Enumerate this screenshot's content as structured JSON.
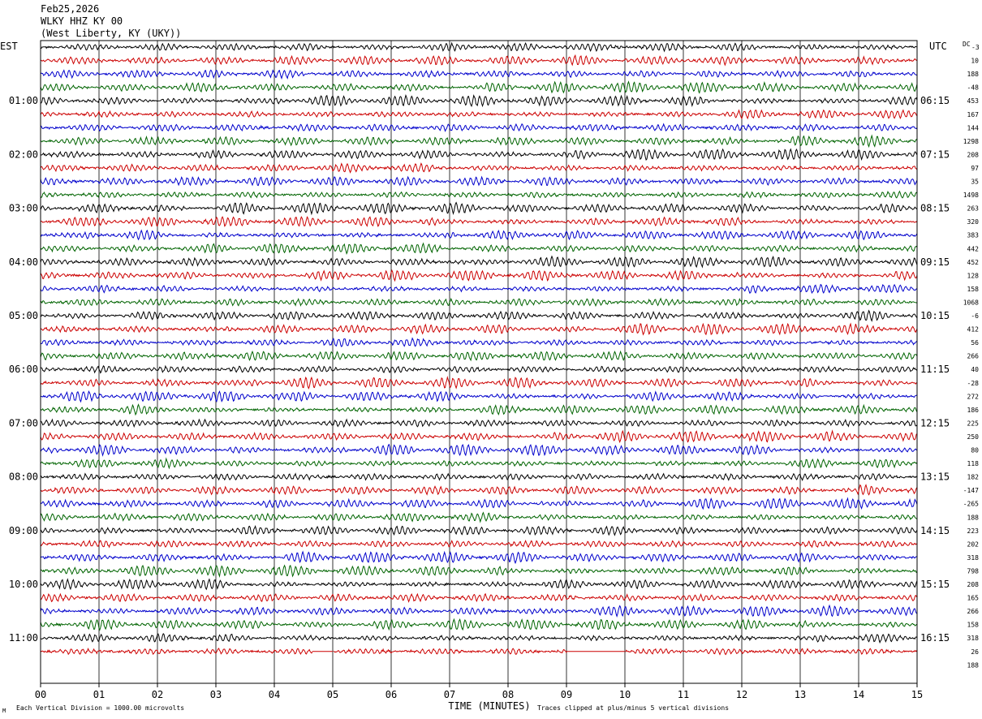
{
  "header": {
    "date": "Feb25,2026",
    "station": "WLKY HHZ KY 00",
    "location": "(West Liberty, KY (UKY))"
  },
  "chart_data": {
    "type": "line",
    "left_timezone": "EST",
    "right_timezone": "UTC",
    "right_header": "DC",
    "right_header_sub": "-3",
    "xlabel": "TIME (MINUTES)",
    "x_ticks": [
      "00",
      "01",
      "02",
      "03",
      "04",
      "05",
      "06",
      "07",
      "08",
      "09",
      "10",
      "11",
      "12",
      "13",
      "14",
      "15"
    ],
    "xlim": [
      0,
      15
    ],
    "trace_minutes": 15,
    "trace_colors": [
      "#000000",
      "#cc0000",
      "#0000cc",
      "#006400"
    ],
    "left_hour_labels": [
      "01:00",
      "02:00",
      "03:00",
      "04:00",
      "05:00",
      "06:00",
      "07:00",
      "08:00",
      "09:00",
      "10:00",
      "11:00"
    ],
    "right_hour_labels": [
      "06:15",
      "07:15",
      "08:15",
      "09:15",
      "10:15",
      "11:15",
      "12:15",
      "13:15",
      "14:15",
      "15:15",
      "16:15"
    ],
    "dc_offsets": [
      "10",
      "188",
      "-48",
      "453",
      "167",
      "144",
      "1298",
      "208",
      "97",
      "35",
      "1498",
      "263",
      "320",
      "383",
      "442",
      "452",
      "128",
      "158",
      "1068",
      "-6",
      "412",
      "56",
      "266",
      "40",
      "-28",
      "272",
      "186",
      "225",
      "250",
      "80",
      "118",
      "182",
      "-147",
      "-265",
      "188",
      "223",
      "202",
      "318",
      "798",
      "208",
      "165",
      "266",
      "158",
      "318",
      "26",
      "188"
    ],
    "footer_left": "Each Vertical Division = 1000.00 microvolts",
    "footer_right": "Traces clipped at plus/minus 5 vertical divisions",
    "footer_mark": "M",
    "gaps_last_trace": [
      [
        4.65,
        5.0
      ],
      [
        9.0,
        10.0
      ]
    ]
  }
}
